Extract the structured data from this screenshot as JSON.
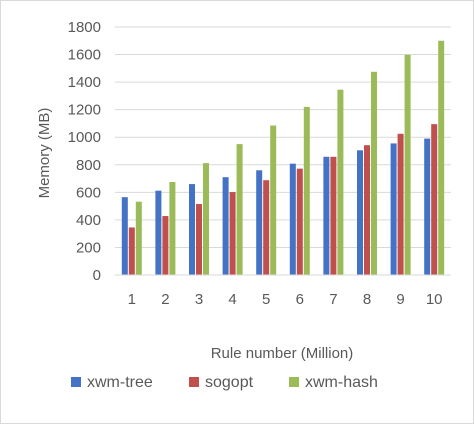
{
  "chart_data": {
    "type": "bar",
    "categories": [
      "1",
      "2",
      "3",
      "4",
      "5",
      "6",
      "7",
      "8",
      "9",
      "10"
    ],
    "series": [
      {
        "name": "xwm-tree",
        "color": "#4472c4",
        "values": [
          565,
          612,
          660,
          710,
          760,
          808,
          858,
          905,
          955,
          990
        ]
      },
      {
        "name": "sogopt",
        "color": "#c0504d",
        "values": [
          345,
          428,
          515,
          602,
          688,
          772,
          858,
          942,
          1025,
          1095
        ]
      },
      {
        "name": "xwm-hash",
        "color": "#9bbb59",
        "values": [
          532,
          675,
          812,
          950,
          1085,
          1220,
          1345,
          1475,
          1598,
          1700
        ]
      }
    ],
    "xlabel": "Rule number (Million)",
    "ylabel": "Memory (MB)",
    "ylim": [
      0,
      1800
    ],
    "yticks": [
      "0",
      "200",
      "400",
      "600",
      "800",
      "1000",
      "1200",
      "1400",
      "1600",
      "1800"
    ],
    "grid": true,
    "legend": "bottom"
  }
}
